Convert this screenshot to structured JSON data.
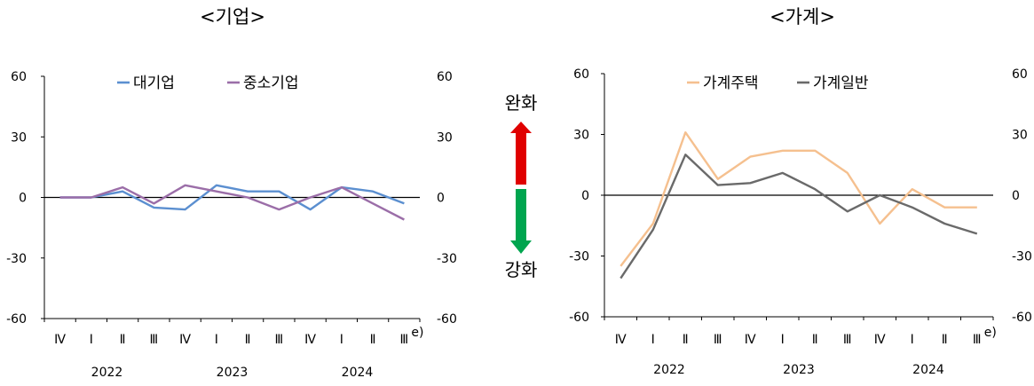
{
  "chart_data": [
    {
      "type": "line",
      "title": "<기업>",
      "categories": [
        "Ⅳ",
        "Ⅰ",
        "Ⅱ",
        "Ⅲ",
        "Ⅳ",
        "Ⅰ",
        "Ⅱ",
        "Ⅲ",
        "Ⅳ",
        "Ⅰ",
        "Ⅱ",
        "Ⅲ"
      ],
      "year_labels": [
        "2022",
        "2023",
        "2024"
      ],
      "last_category_note": "e)",
      "ylim": [
        -60,
        60
      ],
      "yticks": [
        60,
        30,
        0,
        -30,
        -60
      ],
      "legend": "top",
      "series": [
        {
          "name": "대기업",
          "color": "#5b8fd0",
          "values": [
            0,
            0,
            3,
            -5,
            -6,
            6,
            3,
            3,
            -6,
            5,
            3,
            -3
          ]
        },
        {
          "name": "중소기업",
          "color": "#9b6ea8",
          "values": [
            0,
            0,
            5,
            -3,
            6,
            3,
            0,
            -6,
            0,
            5,
            -3,
            -11
          ]
        }
      ]
    },
    {
      "type": "line",
      "title": "<가계>",
      "categories": [
        "Ⅳ",
        "Ⅰ",
        "Ⅱ",
        "Ⅲ",
        "Ⅳ",
        "Ⅰ",
        "Ⅱ",
        "Ⅲ",
        "Ⅳ",
        "Ⅰ",
        "Ⅱ",
        "Ⅲ"
      ],
      "year_labels": [
        "2022",
        "2023",
        "2024"
      ],
      "last_category_note": "e)",
      "ylim": [
        -60,
        60
      ],
      "yticks": [
        60,
        30,
        0,
        -30,
        -60
      ],
      "legend": "top",
      "series": [
        {
          "name": "가계주택",
          "color": "#f5c08f",
          "values": [
            -35,
            -14,
            31,
            8,
            19,
            22,
            22,
            11,
            -14,
            3,
            -6,
            -6
          ]
        },
        {
          "name": "가계일반",
          "color": "#6a6a6a",
          "values": [
            -41,
            -17,
            20,
            5,
            6,
            11,
            3,
            -8,
            0,
            -6,
            -14,
            -19
          ]
        }
      ]
    }
  ],
  "indicator": {
    "up_label": "완화",
    "down_label": "강화",
    "up_color": "#e00000",
    "down_color": "#00a54f"
  }
}
